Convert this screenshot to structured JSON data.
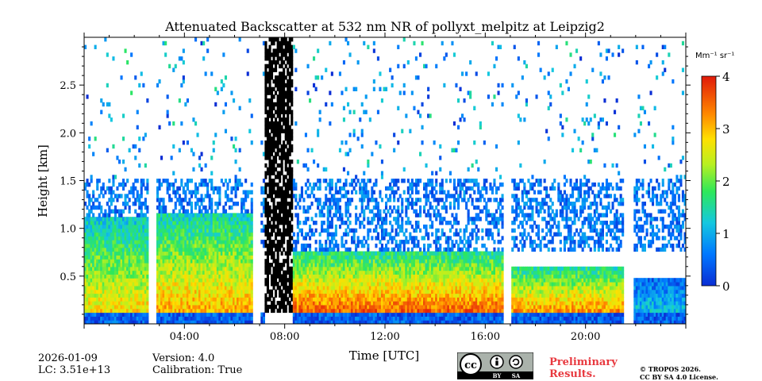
{
  "chart_data": {
    "type": "heatmap",
    "title": "Attenuated Backscatter at 532 nm NR of pollyxt_melpitz at Leipzig2",
    "xlabel": "Time [UTC]",
    "ylabel": "Height [km]",
    "xlim": [
      0,
      24
    ],
    "ylim": [
      0,
      3.0
    ],
    "xticks": [
      {
        "value": 4,
        "label": "04:00"
      },
      {
        "value": 8,
        "label": "08:00"
      },
      {
        "value": 12,
        "label": "12:00"
      },
      {
        "value": 16,
        "label": "16:00"
      },
      {
        "value": 20,
        "label": "20:00"
      }
    ],
    "yticks": [
      {
        "value": 0.5,
        "label": "0.5"
      },
      {
        "value": 1.0,
        "label": "1.0"
      },
      {
        "value": 1.5,
        "label": "1.5"
      },
      {
        "value": 2.0,
        "label": "2.0"
      },
      {
        "value": 2.5,
        "label": "2.5"
      }
    ],
    "colorbar": {
      "unit_label": "Mm⁻¹ sr⁻¹",
      "range": [
        0,
        4
      ],
      "ticks": [
        {
          "value": 0,
          "label": "0"
        },
        {
          "value": 1,
          "label": "1"
        },
        {
          "value": 2,
          "label": "2"
        },
        {
          "value": 3,
          "label": "3"
        },
        {
          "value": 4,
          "label": "4"
        }
      ]
    },
    "data_gaps_hours": [
      [
        2.5,
        2.85
      ],
      [
        6.65,
        7.0
      ],
      [
        16.65,
        17.0
      ],
      [
        21.5,
        21.85
      ]
    ],
    "signal_dropout_hours": [
      7.2,
      8.3
    ],
    "layers": [
      {
        "name": "surface-layer",
        "start": 0,
        "end": 24,
        "bottom": 0,
        "top": 0.12,
        "value": 0.4
      },
      {
        "name": "night-aerosol-layer-1",
        "start": 0,
        "end": 2.5,
        "bottom": 0.12,
        "top": 1.1,
        "value": 2.0
      },
      {
        "name": "night-aerosol-layer-2",
        "start": 2.85,
        "end": 6.65,
        "bottom": 0.12,
        "top": 1.15,
        "value": 2.2
      },
      {
        "name": "boundary-layer-day",
        "start": 8.3,
        "end": 16.65,
        "bottom": 0.12,
        "top": 0.75,
        "value": 2.5
      },
      {
        "name": "boundary-layer-evening",
        "start": 17.0,
        "end": 21.5,
        "bottom": 0.12,
        "top": 0.6,
        "value": 2.3
      },
      {
        "name": "boundary-layer-late",
        "start": 21.85,
        "end": 24,
        "bottom": 0.12,
        "top": 0.45,
        "value": 0.8
      },
      {
        "name": "residual-layer",
        "start": 0,
        "end": 24,
        "bottom": 0.75,
        "top": 1.5,
        "value": 0.6
      }
    ]
  },
  "footer": {
    "date": "2026-01-09",
    "lc": "LC: 3.51e+13",
    "version": "Version: 4.0",
    "calibration": "Calibration: True",
    "prelim_line1": "Preliminary",
    "prelim_line2": "Results.",
    "copyright_line1": "© TROPOS 2026.",
    "copyright_line2": "CC BY SA 4.0 License.",
    "license_badge_text": [
      "cc",
      "BY",
      "SA"
    ]
  }
}
